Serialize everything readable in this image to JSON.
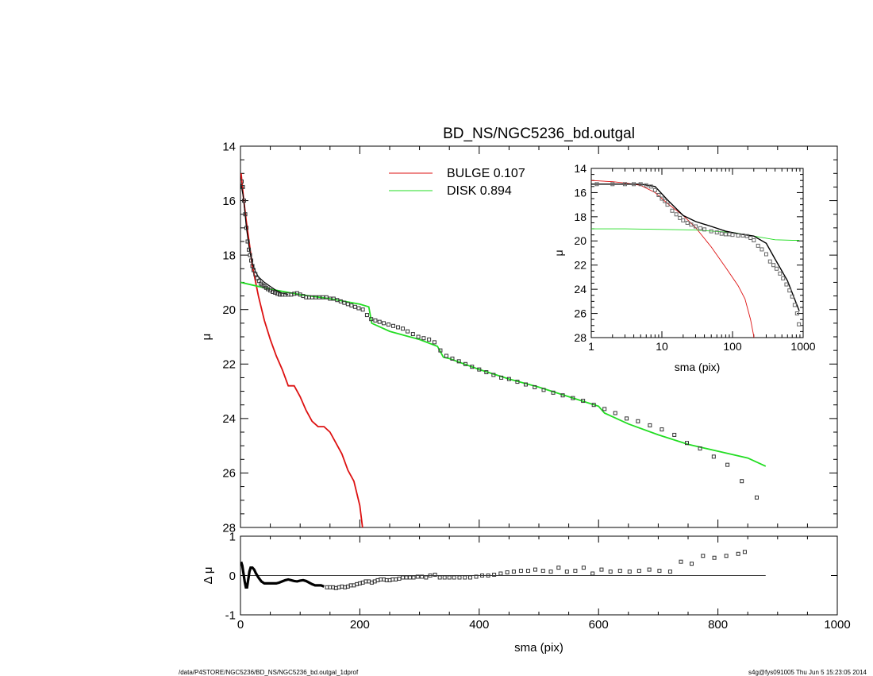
{
  "chart_data": [
    {
      "type": "scatter",
      "title": "BD_NS/NGC5236_bd.outgal",
      "xlabel": "",
      "ylabel": "μ",
      "xlim": [
        0,
        1000
      ],
      "ylim": [
        28,
        14
      ],
      "y_ticks": [
        14,
        16,
        18,
        20,
        22,
        24,
        26,
        28
      ],
      "x_ticks": [
        0,
        200,
        400,
        600,
        800,
        1000
      ],
      "legend_placement": "top-center",
      "legend": [
        {
          "label": "BULGE  0.107",
          "color": "#dd1111"
        },
        {
          "label": "DISK  0.894",
          "color": "#22dd22"
        }
      ],
      "series": [
        {
          "name": "BULGE  0.107",
          "kind": "line",
          "color": "#dd1111",
          "x": [
            1,
            5,
            10,
            15,
            20,
            30,
            40,
            50,
            60,
            70,
            80,
            90,
            100,
            110,
            120,
            130,
            140,
            150,
            160,
            170,
            180,
            190,
            200,
            205
          ],
          "y": [
            15.0,
            15.9,
            16.8,
            17.6,
            18.4,
            19.5,
            20.4,
            21.1,
            21.7,
            22.2,
            22.8,
            22.8,
            23.2,
            23.7,
            24.1,
            24.3,
            24.3,
            24.5,
            24.9,
            25.3,
            25.9,
            26.3,
            27.2,
            28.1
          ]
        },
        {
          "name": "DISK  0.894",
          "kind": "line",
          "color": "#22dd22",
          "x": [
            0,
            50,
            100,
            150,
            200,
            215,
            220,
            250,
            300,
            330,
            340,
            350,
            400,
            450,
            500,
            550,
            600,
            610,
            650,
            700,
            750,
            800,
            850,
            880
          ],
          "y": [
            19.0,
            19.25,
            19.45,
            19.6,
            19.8,
            19.9,
            20.5,
            20.8,
            21.1,
            21.35,
            21.75,
            21.8,
            22.2,
            22.55,
            22.85,
            23.2,
            23.55,
            23.8,
            24.2,
            24.6,
            24.95,
            25.2,
            25.45,
            25.75
          ]
        },
        {
          "name": "",
          "kind": "line",
          "color": "#000000",
          "x": [
            1,
            5,
            10,
            15,
            20,
            25,
            30,
            40,
            50,
            60,
            70,
            80
          ],
          "y": [
            15.4,
            15.9,
            17.0,
            17.8,
            18.3,
            18.6,
            18.8,
            19.0,
            19.15,
            19.3,
            19.4,
            19.45
          ]
        },
        {
          "name": "",
          "kind": "markers",
          "color": "#333333",
          "x": [
            2,
            4,
            6,
            8,
            10,
            12,
            14,
            16,
            18,
            20,
            22,
            25,
            28,
            31,
            34,
            37,
            40,
            43,
            46,
            50,
            54,
            58,
            62,
            66,
            70,
            75,
            80,
            85,
            90,
            95,
            100,
            105,
            110,
            115,
            120,
            126,
            132,
            138,
            144,
            150,
            156,
            162,
            168,
            174,
            180,
            186,
            192,
            198,
            205,
            212,
            219,
            226,
            233,
            240,
            248,
            256,
            264,
            272,
            280,
            289,
            298,
            307,
            316,
            325,
            335,
            345,
            355,
            366,
            377,
            388,
            400,
            412,
            424,
            437,
            450,
            464,
            478,
            493,
            508,
            524,
            540,
            557,
            574,
            592,
            610,
            628,
            647,
            666,
            686,
            706,
            727,
            748,
            770,
            793,
            816,
            840,
            865
          ],
          "y": [
            15.3,
            15.5,
            16.0,
            16.5,
            17.0,
            17.5,
            17.8,
            18.0,
            18.2,
            18.4,
            18.55,
            18.7,
            18.85,
            18.95,
            19.05,
            19.1,
            19.15,
            19.2,
            19.25,
            19.3,
            19.35,
            19.38,
            19.42,
            19.45,
            19.45,
            19.45,
            19.45,
            19.45,
            19.42,
            19.4,
            19.45,
            19.5,
            19.55,
            19.55,
            19.55,
            19.55,
            19.55,
            19.55,
            19.55,
            19.6,
            19.6,
            19.65,
            19.7,
            19.75,
            19.8,
            19.85,
            19.9,
            19.95,
            20.0,
            20.2,
            20.35,
            20.4,
            20.45,
            20.5,
            20.55,
            20.6,
            20.65,
            20.7,
            20.8,
            20.9,
            21.0,
            21.05,
            21.1,
            21.2,
            21.5,
            21.7,
            21.8,
            21.9,
            22.0,
            22.1,
            22.2,
            22.3,
            22.4,
            22.5,
            22.55,
            22.65,
            22.75,
            22.85,
            22.95,
            23.05,
            23.15,
            23.25,
            23.35,
            23.5,
            23.65,
            23.8,
            24.0,
            24.1,
            24.25,
            24.4,
            24.6,
            24.9,
            25.1,
            25.4,
            25.7,
            26.3,
            26.9
          ]
        }
      ]
    },
    {
      "type": "line",
      "title": "",
      "xlabel": "sma (pix)",
      "ylabel": "μ",
      "x_scale": "log",
      "xlim": [
        1,
        1000
      ],
      "ylim": [
        28,
        14
      ],
      "x_ticks": [
        1,
        10,
        100,
        1000
      ],
      "y_ticks": [
        14,
        16,
        18,
        20,
        22,
        24,
        26,
        28
      ],
      "series": [
        {
          "name": "",
          "kind": "line",
          "color": "#dd1111",
          "x": [
            1,
            2,
            3,
            5,
            8,
            12,
            20,
            30,
            50,
            80,
            120,
            150,
            180,
            205
          ],
          "y": [
            15.0,
            15.1,
            15.2,
            15.4,
            16.0,
            16.9,
            17.9,
            18.9,
            20.5,
            22.2,
            23.7,
            24.8,
            26.5,
            28.2
          ]
        },
        {
          "name": "",
          "kind": "line",
          "color": "#22dd22",
          "x": [
            1,
            3,
            10,
            30,
            100,
            200,
            400,
            700,
            880
          ],
          "y": [
            19.0,
            19.0,
            19.05,
            19.1,
            19.3,
            19.6,
            19.9,
            19.95,
            19.95
          ]
        },
        {
          "name": "",
          "kind": "line",
          "color": "#000000",
          "x": [
            1,
            3,
            5,
            8,
            12,
            20,
            30,
            50,
            80,
            120,
            200,
            300,
            400,
            600,
            880
          ],
          "y": [
            15.3,
            15.3,
            15.3,
            15.5,
            16.6,
            17.9,
            18.4,
            18.8,
            19.2,
            19.4,
            19.6,
            20.2,
            21.5,
            23.3,
            25.8
          ]
        },
        {
          "name": "",
          "kind": "markers",
          "color": "#666666",
          "x": [
            1.2,
            2,
            3,
            4,
            5,
            6,
            7,
            8,
            9,
            10,
            11,
            12,
            14,
            16,
            18,
            20,
            23,
            26,
            30,
            35,
            40,
            50,
            60,
            70,
            80,
            90,
            100,
            120,
            140,
            160,
            180,
            200,
            230,
            260,
            300,
            340,
            380,
            420,
            470,
            520,
            580,
            640,
            700,
            760,
            820,
            870
          ],
          "y": [
            15.3,
            15.3,
            15.3,
            15.3,
            15.3,
            15.4,
            15.5,
            15.8,
            16.2,
            16.5,
            16.7,
            17.0,
            17.5,
            17.8,
            18.1,
            18.3,
            18.5,
            18.65,
            18.8,
            18.95,
            19.05,
            19.2,
            19.3,
            19.4,
            19.45,
            19.45,
            19.5,
            19.55,
            19.55,
            19.6,
            19.75,
            19.95,
            20.4,
            20.7,
            21.1,
            21.7,
            22.0,
            22.3,
            22.7,
            23.1,
            23.6,
            24.1,
            24.6,
            25.3,
            26.0,
            26.9
          ]
        }
      ]
    },
    {
      "type": "scatter",
      "title": "",
      "xlabel": "sma (pix)",
      "ylabel": "Δ μ",
      "xlim": [
        0,
        1000
      ],
      "ylim": [
        -1,
        1
      ],
      "x_ticks": [
        0,
        200,
        400,
        600,
        800,
        1000
      ],
      "y_ticks": [
        -1,
        0,
        1
      ],
      "series": [
        {
          "name": "",
          "kind": "line",
          "color": "#000000",
          "x": [
            1,
            3,
            5,
            7,
            9,
            11,
            13,
            15,
            17,
            20,
            23,
            26,
            30,
            35,
            40,
            45,
            50,
            55,
            60,
            65,
            70,
            75,
            80,
            85,
            90,
            95,
            100,
            105,
            110,
            115,
            120,
            125,
            130,
            135,
            140
          ],
          "y": [
            0.35,
            0.25,
            0.05,
            -0.15,
            -0.3,
            -0.3,
            -0.1,
            0.1,
            0.2,
            0.2,
            0.15,
            0.05,
            -0.05,
            -0.15,
            -0.2,
            -0.2,
            -0.2,
            -0.2,
            -0.2,
            -0.18,
            -0.15,
            -0.12,
            -0.1,
            -0.12,
            -0.14,
            -0.15,
            -0.13,
            -0.12,
            -0.14,
            -0.18,
            -0.22,
            -0.25,
            -0.25,
            -0.25,
            -0.28
          ]
        },
        {
          "name": "",
          "kind": "markers",
          "color": "#333333",
          "x": [
            145,
            150,
            155,
            160,
            165,
            170,
            175,
            180,
            185,
            190,
            195,
            200,
            205,
            210,
            215,
            220,
            225,
            230,
            235,
            240,
            245,
            250,
            255,
            260,
            266,
            272,
            278,
            284,
            290,
            297,
            304,
            311,
            318,
            326,
            334,
            342,
            350,
            358,
            367,
            376,
            385,
            395,
            405,
            415,
            425,
            436,
            447,
            458,
            470,
            482,
            494,
            507,
            520,
            533,
            547,
            561,
            575,
            590,
            605,
            620,
            636,
            652,
            668,
            685,
            702,
            720,
            738,
            756,
            775,
            794,
            814,
            834,
            845
          ],
          "y": [
            -0.3,
            -0.3,
            -0.3,
            -0.32,
            -0.3,
            -0.28,
            -0.3,
            -0.28,
            -0.25,
            -0.25,
            -0.22,
            -0.2,
            -0.18,
            -0.15,
            -0.15,
            -0.18,
            -0.15,
            -0.12,
            -0.1,
            -0.1,
            -0.12,
            -0.12,
            -0.1,
            -0.1,
            -0.08,
            -0.05,
            -0.05,
            -0.05,
            -0.05,
            -0.03,
            -0.03,
            -0.05,
            0.0,
            0.02,
            -0.05,
            -0.05,
            -0.05,
            -0.05,
            -0.05,
            -0.05,
            -0.05,
            -0.03,
            0.0,
            0.0,
            0.02,
            0.05,
            0.08,
            0.1,
            0.12,
            0.12,
            0.15,
            0.12,
            0.1,
            0.2,
            0.1,
            0.12,
            0.2,
            0.05,
            0.15,
            0.1,
            0.12,
            0.1,
            0.12,
            0.15,
            0.12,
            0.1,
            0.35,
            0.3,
            0.5,
            0.45,
            0.5,
            0.55,
            0.6
          ]
        }
      ]
    }
  ],
  "footer": {
    "path": "/data/P4STORE/NGC5236/BD_NS/NGC5236_bd.outgal_1dprof",
    "stamp": "s4g@fys091005  Thu Jun  5 15:23:05 2014"
  }
}
